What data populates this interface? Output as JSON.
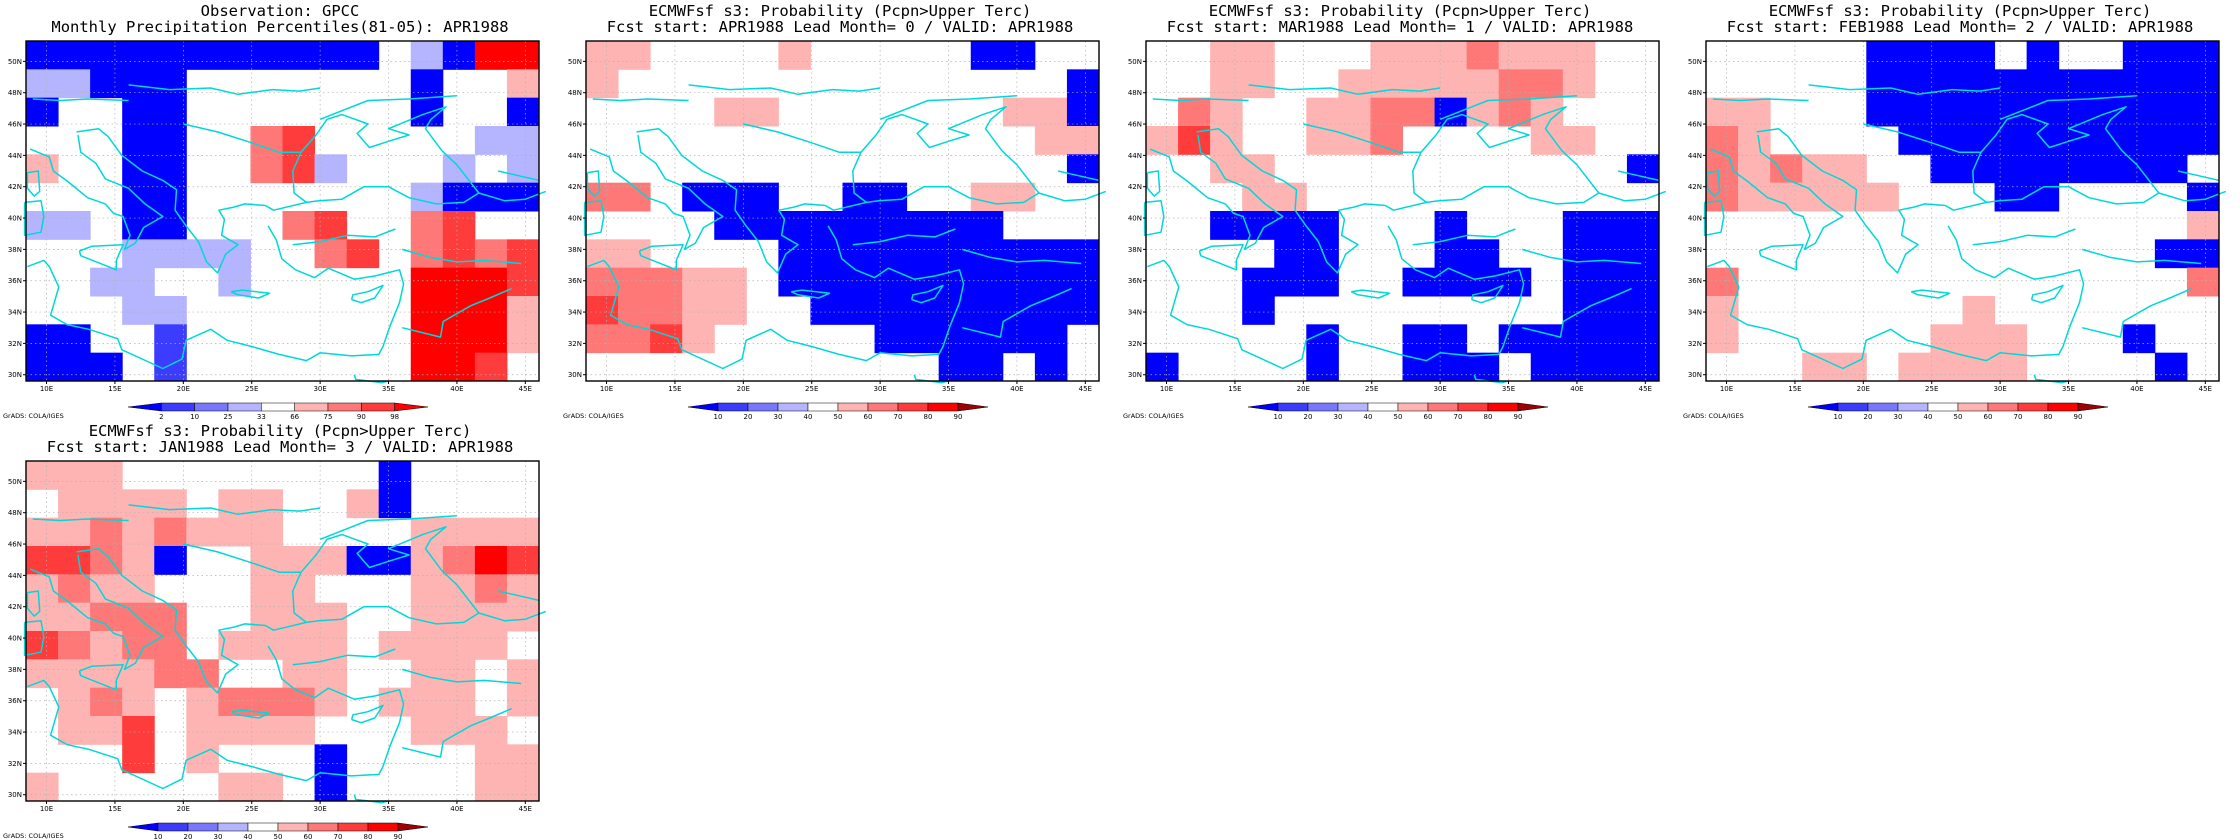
{
  "map_labels": {
    "lat": [
      "30N",
      "32N",
      "34N",
      "36N",
      "38N",
      "40N",
      "42N",
      "44N",
      "46N",
      "48N",
      "50N"
    ],
    "lon": [
      "10E",
      "15E",
      "20E",
      "25E",
      "30E",
      "35E",
      "40E",
      "45E"
    ]
  },
  "panels": [
    {
      "title_line1": "Observation: GPCC",
      "title_line2": "Monthly Precipitation Percentiles(81-05): APR1988",
      "colorbar": {
        "labels": [
          "2",
          "10",
          "25",
          "33",
          "66",
          "75",
          "90",
          "98"
        ],
        "colors": [
          "#0000ff",
          "#3c3cff",
          "#7878ff",
          "#b4b4ff",
          "#ffffff",
          "#ffb4b4",
          "#ff7878",
          "#ff3c3c",
          "#ff0000"
        ]
      },
      "grads_label": "GrADS: COLA/IGES",
      "grid": [
        "333333333333333333333333333333333322222222222222222222222222222222222222222222222222222222222222221111111111111",
        "3333333333333333333333322222222222222222222222222222222222222222222222222222222221111111111111111111111111111111",
        "1111111111111111111111111111111111111111111111111111111111111111111111111111111111111111111111111111111111111111"
      ],
      "cells": "BBBBBBbcdeeeeeeeeeeeeBBBddbb|cccBBBBBBeeeeeeeeeeeeeeeeeeeee|BBBBBBddeeeeeeeeeeeeeeeeeeeeeeeeeeeee|cccccccccccc"
    },
    {
      "title_line1": "ECMWFsf s3: Probability (Pcpn>Upper Terc)",
      "title_line2": "Fcst start: APR1988  Lead Month= 0 / VALID: APR1988",
      "colorbar": {
        "labels": [
          "10",
          "20",
          "30",
          "40",
          "50",
          "60",
          "70",
          "80",
          "90"
        ],
        "colors": [
          "#0000ff",
          "#3c3cff",
          "#7878ff",
          "#b4b4ff",
          "#ffffff",
          "#ffb4b4",
          "#ff7878",
          "#ff3c3c",
          "#ff0000",
          "#a00000"
        ]
      },
      "grads_label": "GrADS: COLA/IGES"
    },
    {
      "title_line1": "ECMWFsf s3: Probability (Pcpn>Upper Terc)",
      "title_line2": "Fcst start: MAR1988  Lead Month= 1 / VALID: APR1988",
      "colorbar": {
        "labels": [
          "10",
          "20",
          "30",
          "40",
          "50",
          "60",
          "70",
          "80",
          "90"
        ],
        "colors": [
          "#0000ff",
          "#3c3cff",
          "#7878ff",
          "#b4b4ff",
          "#ffffff",
          "#ffb4b4",
          "#ff7878",
          "#ff3c3c",
          "#ff0000",
          "#a00000"
        ]
      },
      "grads_label": "GrADS: COLA/IGES"
    },
    {
      "title_line1": "ECMWFsf s3: Probability (Pcpn>Upper Terc)",
      "title_line2": "Fcst start: FEB1988  Lead Month= 2 / VALID: APR1988",
      "colorbar": {
        "labels": [
          "10",
          "20",
          "30",
          "40",
          "50",
          "60",
          "70",
          "80",
          "90"
        ],
        "colors": [
          "#0000ff",
          "#3c3cff",
          "#7878ff",
          "#b4b4ff",
          "#ffffff",
          "#ffb4b4",
          "#ff7878",
          "#ff3c3c",
          "#ff0000",
          "#a00000"
        ]
      },
      "grads_label": "GrADS: COLA/IGES"
    },
    {
      "title_line1": "ECMWFsf s3: Probability (Pcpn>Upper Terc)",
      "title_line2": "Fcst start: JAN1988  Lead Month= 3 / VALID: APR1988",
      "colorbar": {
        "labels": [
          "10",
          "20",
          "30",
          "40",
          "50",
          "60",
          "70",
          "80",
          "90"
        ],
        "colors": [
          "#0000ff",
          "#3c3cff",
          "#7878ff",
          "#b4b4ff",
          "#ffffff",
          "#ffb4b4",
          "#ff7878",
          "#ff3c3c",
          "#ff0000",
          "#a00000"
        ]
      },
      "grads_label": "GrADS: COLA/IGES"
    }
  ]
}
